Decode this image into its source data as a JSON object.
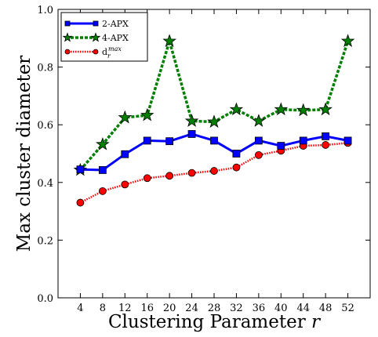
{
  "chart_data": {
    "type": "line",
    "xlabel": "Clustering Parameter",
    "xlabel_var": "r",
    "ylabel": "Max cluster diameter",
    "x": [
      4,
      8,
      12,
      16,
      20,
      24,
      28,
      32,
      36,
      40,
      44,
      48,
      52
    ],
    "xlim": [
      0,
      56
    ],
    "ylim": [
      0.0,
      1.0
    ],
    "yticks": [
      0.0,
      0.2,
      0.4,
      0.6,
      0.8,
      1.0
    ],
    "ytick_labels": [
      "0.0",
      "0.2",
      "0.4",
      "0.6",
      "0.8",
      "1.0"
    ],
    "grid": false,
    "legend_position": "top-left",
    "series": [
      {
        "name": "2-APX",
        "color": "#0000ff",
        "marker": "square",
        "line_style": "solid",
        "values": [
          0.445,
          0.443,
          0.498,
          0.545,
          0.543,
          0.568,
          0.545,
          0.5,
          0.545,
          0.527,
          0.545,
          0.56,
          0.545
        ]
      },
      {
        "name": "4-APX",
        "color": "#007f00",
        "marker": "star",
        "line_style": "dashed",
        "values": [
          0.443,
          0.532,
          0.625,
          0.633,
          0.89,
          0.613,
          0.61,
          0.653,
          0.613,
          0.653,
          0.65,
          0.653,
          0.89
        ]
      },
      {
        "name": "d",
        "name_superscript": "max",
        "name_subscript": "r",
        "color": "#ff0000",
        "marker": "circle",
        "line_style": "dotted",
        "values": [
          0.33,
          0.37,
          0.393,
          0.415,
          0.423,
          0.433,
          0.44,
          0.452,
          0.495,
          0.51,
          0.527,
          0.53,
          0.537
        ]
      }
    ]
  }
}
